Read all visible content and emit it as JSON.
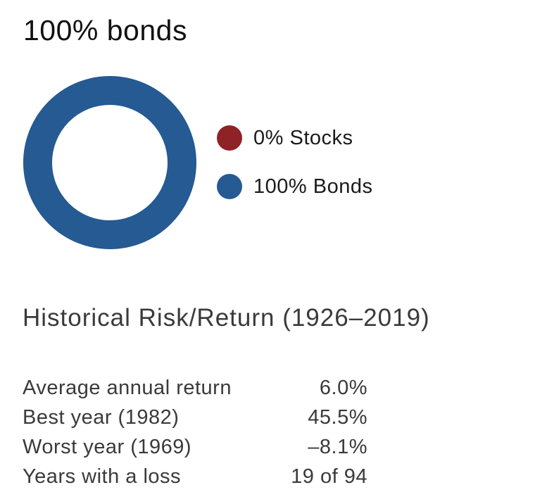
{
  "chart_data": {
    "type": "pie",
    "title": "100% bonds",
    "series": [
      {
        "name": "0% Stocks",
        "value": 0,
        "color": "#8f2226"
      },
      {
        "name": "100% Bonds",
        "value": 100,
        "color": "#255a92"
      }
    ]
  },
  "stats": {
    "title": "Historical Risk/Return (1926–2019)",
    "rows": [
      {
        "label": "Average annual return",
        "value": "6.0%"
      },
      {
        "label": "Best year (1982)",
        "value": "45.5%"
      },
      {
        "label": "Worst year (1969)",
        "value": "–8.1%"
      },
      {
        "label": "Years with a loss",
        "value": "19 of 94"
      }
    ]
  }
}
